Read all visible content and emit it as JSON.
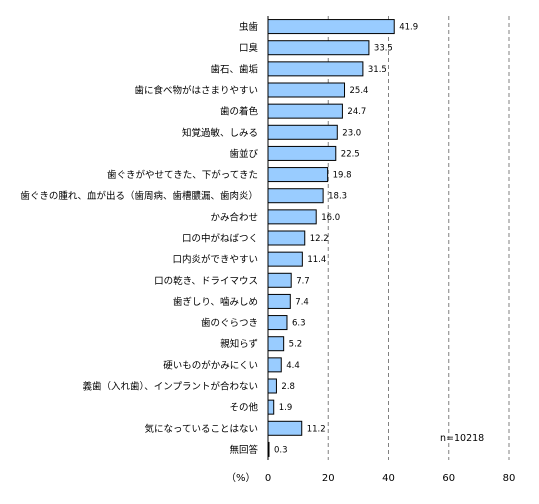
{
  "chart_data": {
    "type": "bar",
    "orientation": "horizontal",
    "categories": [
      "虫歯",
      "口臭",
      "歯石、歯垢",
      "歯に食べ物がはさまりやすい",
      "歯の着色",
      "知覚過敏、しみる",
      "歯並び",
      "歯ぐきがやせてきた、下がってきた",
      "歯ぐきの腫れ、血が出る（歯周病、歯槽膿漏、歯肉炎）",
      "かみ合わせ",
      "口の中がねばつく",
      "口内炎ができやすい",
      "口の乾き、ドライマウス",
      "歯ぎしり、噛みしめ",
      "歯のぐらつき",
      "親知らず",
      "硬いものがかみにくい",
      "義歯（入れ歯）、インプラントが合わない",
      "その他",
      "気になっていることはない",
      "無回答"
    ],
    "values": [
      41.9,
      33.5,
      31.5,
      25.4,
      24.7,
      23.0,
      22.5,
      19.8,
      18.3,
      16.0,
      12.2,
      11.4,
      7.7,
      7.4,
      6.3,
      5.2,
      4.4,
      2.8,
      1.9,
      11.2,
      0.3
    ],
    "value_labels": [
      "41.9",
      "33.5",
      "31.5",
      "25.4",
      "24.7",
      "23.0",
      "22.5",
      "19.8",
      "18.3",
      "16.0",
      "12.2",
      "11.4",
      "7.7",
      "7.4",
      "6.3",
      "5.2",
      "4.4",
      "2.8",
      "1.9",
      "11.2",
      "0.3"
    ],
    "x_ticks": [
      "0",
      "20",
      "40",
      "60",
      "80"
    ],
    "xlim": [
      0,
      80
    ],
    "unit_label": "（%）",
    "annotation": "n=10218",
    "grid": "vertical dashed",
    "colors": {
      "bar": "#99ccff",
      "bar_edge": "#000000",
      "grid": "#808080"
    }
  }
}
